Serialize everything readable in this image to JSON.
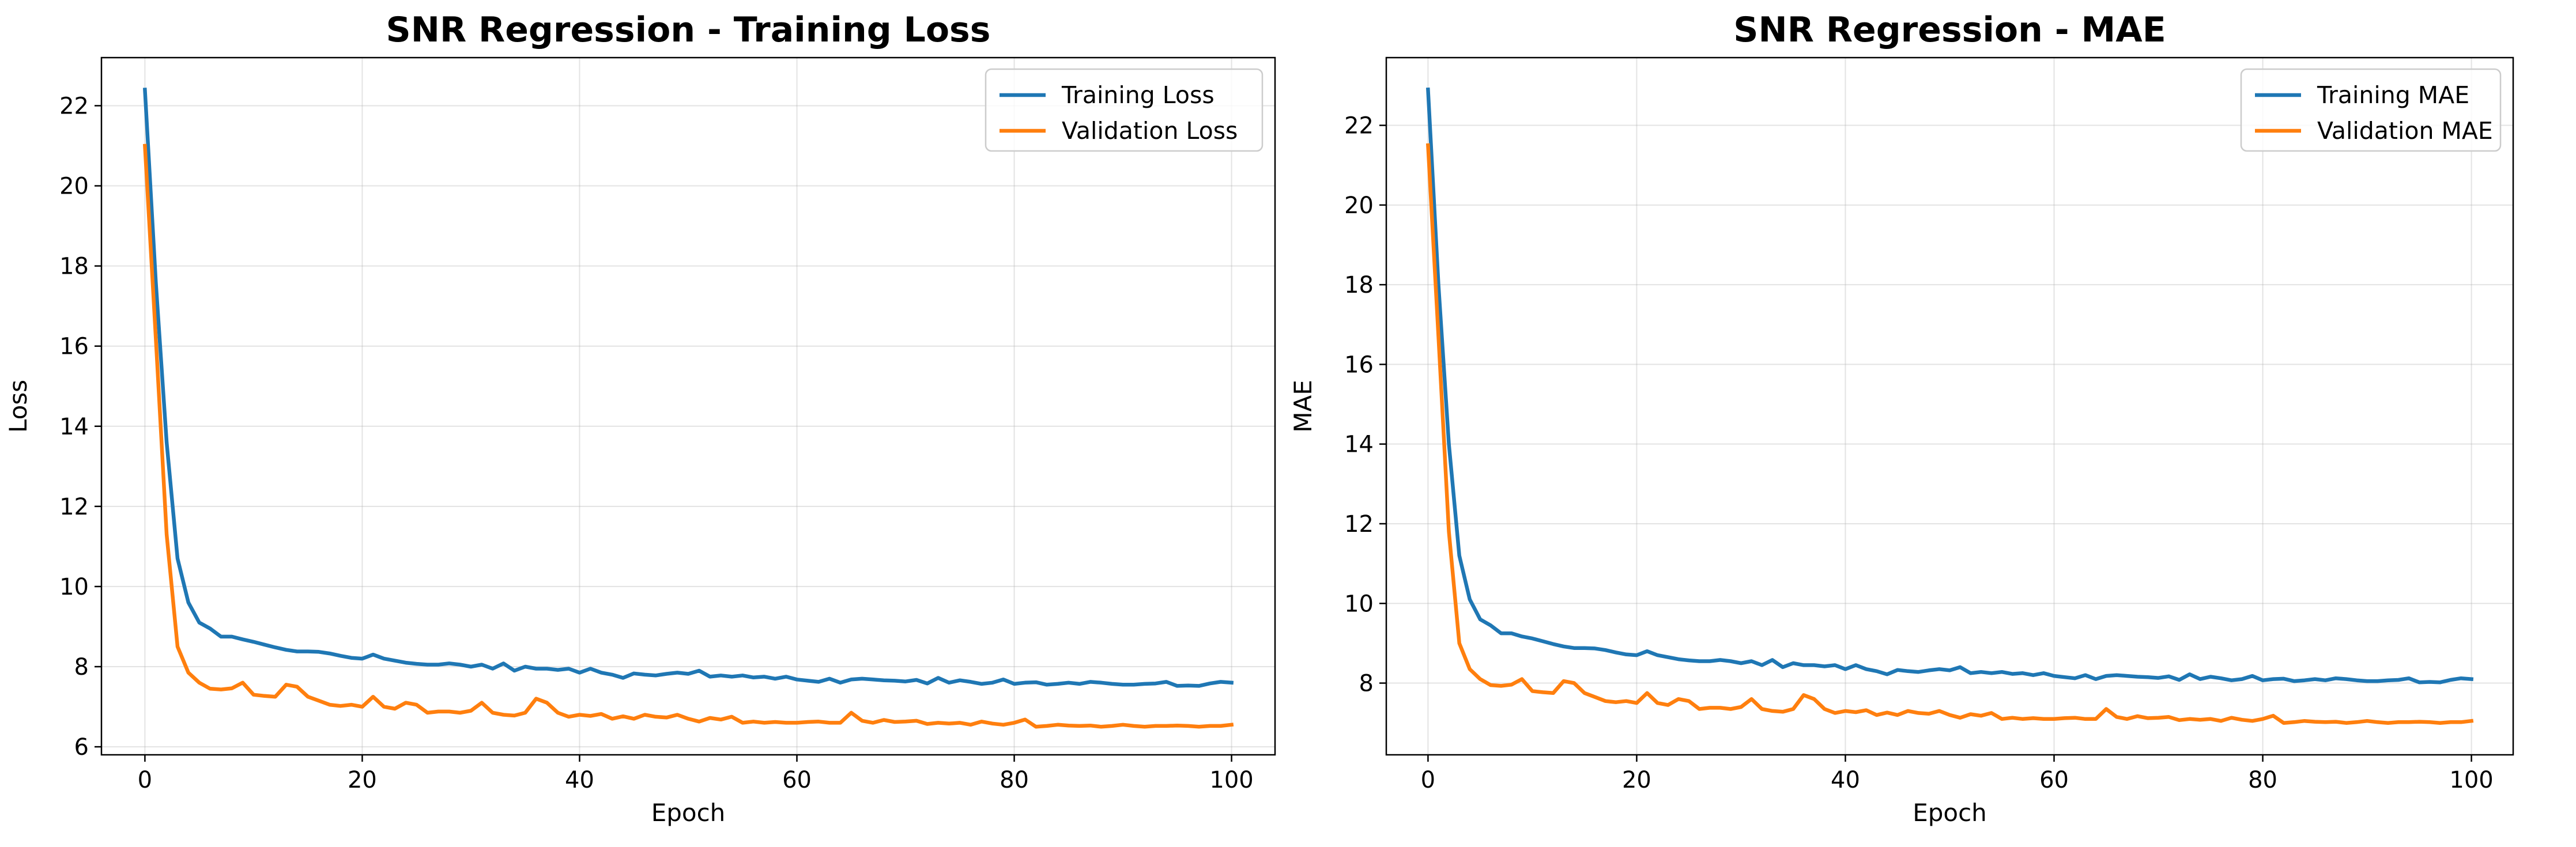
{
  "chart_data": [
    {
      "type": "line",
      "title": "SNR Regression - Training Loss",
      "xlabel": "Epoch",
      "ylabel": "Loss",
      "xlim": [
        -4,
        104
      ],
      "ylim": [
        5.8,
        23.2
      ],
      "xticks": [
        0,
        20,
        40,
        60,
        80,
        100
      ],
      "yticks": [
        6,
        8,
        10,
        12,
        14,
        16,
        18,
        20,
        22
      ],
      "grid": true,
      "legend_position": "top-right",
      "colors": [
        "#1f77b4",
        "#ff7f0e"
      ],
      "series": [
        {
          "name": "Training Loss",
          "values": [
            22.4,
            17.6,
            13.6,
            10.7,
            9.6,
            9.1,
            8.95,
            8.75,
            8.75,
            8.68,
            8.62,
            8.55,
            8.48,
            8.42,
            8.38,
            8.38,
            8.37,
            8.33,
            8.27,
            8.22,
            8.2,
            8.3,
            8.2,
            8.15,
            8.1,
            8.07,
            8.05,
            8.05,
            8.08,
            8.05,
            8.0,
            8.05,
            7.95,
            8.08,
            7.9,
            8.0,
            7.95,
            7.95,
            7.92,
            7.95,
            7.85,
            7.95,
            7.85,
            7.8,
            7.72,
            7.83,
            7.8,
            7.78,
            7.82,
            7.85,
            7.82,
            7.9,
            7.75,
            7.78,
            7.75,
            7.78,
            7.73,
            7.75,
            7.7,
            7.75,
            7.68,
            7.65,
            7.62,
            7.7,
            7.6,
            7.68,
            7.7,
            7.68,
            7.66,
            7.65,
            7.63,
            7.67,
            7.58,
            7.72,
            7.6,
            7.66,
            7.62,
            7.57,
            7.6,
            7.68,
            7.57,
            7.6,
            7.61,
            7.55,
            7.57,
            7.6,
            7.57,
            7.62,
            7.6,
            7.57,
            7.55,
            7.55,
            7.57,
            7.58,
            7.62,
            7.52,
            7.53,
            7.52,
            7.58,
            7.62,
            7.6
          ]
        },
        {
          "name": "Validation Loss",
          "values": [
            21.0,
            16.2,
            11.3,
            8.5,
            7.85,
            7.6,
            7.45,
            7.43,
            7.46,
            7.6,
            7.3,
            7.27,
            7.25,
            7.55,
            7.5,
            7.25,
            7.15,
            7.05,
            7.02,
            7.05,
            7.0,
            7.25,
            7.0,
            6.95,
            7.1,
            7.05,
            6.85,
            6.88,
            6.88,
            6.85,
            6.9,
            7.1,
            6.85,
            6.8,
            6.78,
            6.85,
            7.2,
            7.1,
            6.85,
            6.75,
            6.8,
            6.77,
            6.82,
            6.7,
            6.76,
            6.7,
            6.8,
            6.75,
            6.73,
            6.8,
            6.7,
            6.63,
            6.72,
            6.68,
            6.75,
            6.6,
            6.63,
            6.6,
            6.62,
            6.6,
            6.6,
            6.62,
            6.63,
            6.6,
            6.6,
            6.85,
            6.65,
            6.6,
            6.67,
            6.62,
            6.63,
            6.65,
            6.57,
            6.6,
            6.58,
            6.6,
            6.55,
            6.63,
            6.58,
            6.55,
            6.6,
            6.68,
            6.5,
            6.52,
            6.55,
            6.53,
            6.52,
            6.53,
            6.5,
            6.52,
            6.55,
            6.52,
            6.5,
            6.52,
            6.52,
            6.53,
            6.52,
            6.5,
            6.52,
            6.52,
            6.55
          ]
        }
      ]
    },
    {
      "type": "line",
      "title": "SNR Regression - MAE",
      "xlabel": "Epoch",
      "ylabel": "MAE",
      "xlim": [
        -4,
        104
      ],
      "ylim": [
        6.2,
        23.7
      ],
      "xticks": [
        0,
        20,
        40,
        60,
        80,
        100
      ],
      "yticks": [
        8,
        10,
        12,
        14,
        16,
        18,
        20,
        22
      ],
      "grid": true,
      "legend_position": "top-right",
      "colors": [
        "#1f77b4",
        "#ff7f0e"
      ],
      "series": [
        {
          "name": "Training MAE",
          "values": [
            22.9,
            18.0,
            14.0,
            11.2,
            10.1,
            9.6,
            9.45,
            9.25,
            9.25,
            9.17,
            9.12,
            9.05,
            8.98,
            8.92,
            8.88,
            8.88,
            8.87,
            8.83,
            8.77,
            8.72,
            8.7,
            8.8,
            8.7,
            8.65,
            8.6,
            8.57,
            8.55,
            8.55,
            8.58,
            8.55,
            8.5,
            8.55,
            8.45,
            8.58,
            8.4,
            8.5,
            8.45,
            8.45,
            8.42,
            8.45,
            8.35,
            8.45,
            8.35,
            8.3,
            8.22,
            8.33,
            8.3,
            8.28,
            8.32,
            8.35,
            8.32,
            8.4,
            8.25,
            8.28,
            8.25,
            8.28,
            8.23,
            8.25,
            8.2,
            8.25,
            8.18,
            8.15,
            8.12,
            8.2,
            8.1,
            8.18,
            8.2,
            8.18,
            8.16,
            8.15,
            8.13,
            8.17,
            8.08,
            8.22,
            8.1,
            8.16,
            8.12,
            8.07,
            8.1,
            8.18,
            8.07,
            8.1,
            8.11,
            8.05,
            8.07,
            8.1,
            8.07,
            8.12,
            8.1,
            8.07,
            8.05,
            8.05,
            8.07,
            8.08,
            8.12,
            8.02,
            8.03,
            8.02,
            8.08,
            8.12,
            8.1
          ]
        },
        {
          "name": "Validation MAE",
          "values": [
            21.5,
            16.7,
            11.8,
            9.0,
            8.35,
            8.1,
            7.95,
            7.93,
            7.96,
            8.1,
            7.8,
            7.77,
            7.75,
            8.05,
            8.0,
            7.75,
            7.65,
            7.55,
            7.52,
            7.55,
            7.5,
            7.75,
            7.5,
            7.45,
            7.6,
            7.55,
            7.35,
            7.38,
            7.38,
            7.35,
            7.4,
            7.6,
            7.35,
            7.3,
            7.28,
            7.35,
            7.7,
            7.6,
            7.35,
            7.25,
            7.3,
            7.27,
            7.32,
            7.2,
            7.26,
            7.2,
            7.3,
            7.25,
            7.23,
            7.3,
            7.2,
            7.13,
            7.22,
            7.18,
            7.25,
            7.1,
            7.13,
            7.1,
            7.12,
            7.1,
            7.1,
            7.12,
            7.13,
            7.1,
            7.1,
            7.35,
            7.15,
            7.1,
            7.17,
            7.12,
            7.13,
            7.15,
            7.07,
            7.1,
            7.08,
            7.1,
            7.05,
            7.13,
            7.08,
            7.05,
            7.1,
            7.18,
            7.0,
            7.02,
            7.05,
            7.03,
            7.02,
            7.03,
            7.0,
            7.02,
            7.05,
            7.02,
            7.0,
            7.02,
            7.02,
            7.03,
            7.02,
            7.0,
            7.02,
            7.02,
            7.05
          ]
        }
      ]
    }
  ]
}
